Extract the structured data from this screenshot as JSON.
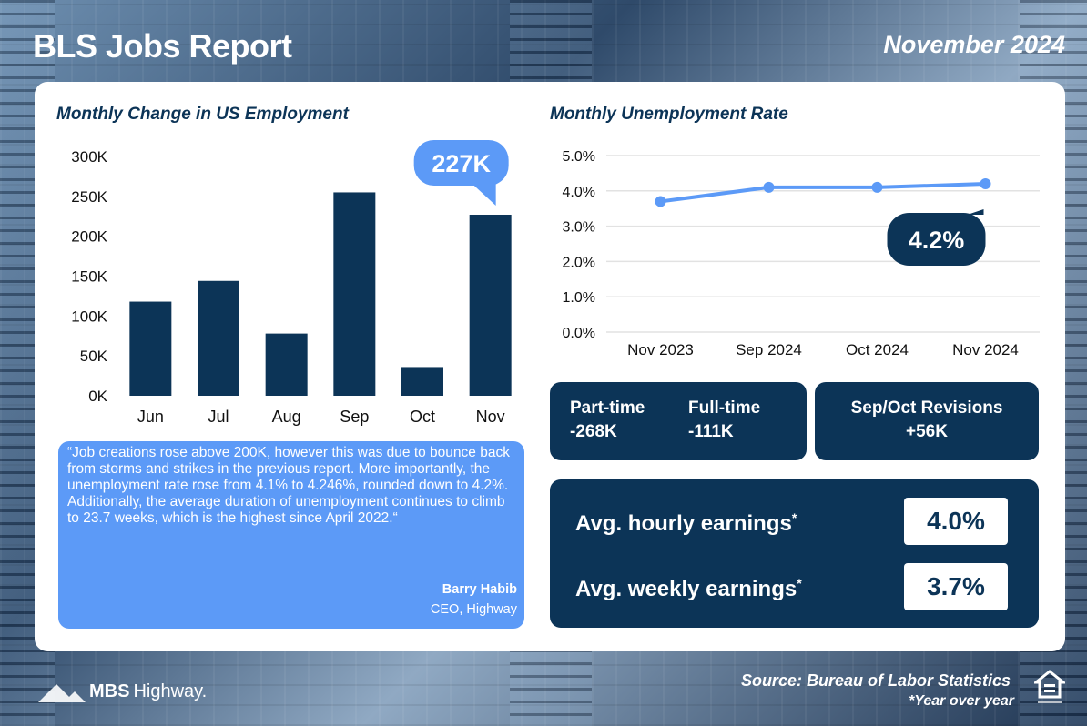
{
  "header": {
    "title": "BLS Jobs Report",
    "date": "November 2024"
  },
  "colors": {
    "navy": "#0c3457",
    "accent": "#5c9af7",
    "line": "#5c9af7"
  },
  "employment_chart_title": "Monthly Change in US Employment",
  "unemployment_chart_title": "Monthly Unemployment Rate",
  "chart_data": [
    {
      "type": "bar",
      "title": "Monthly Change in US Employment",
      "categories": [
        "Jun",
        "Jul",
        "Aug",
        "Sep",
        "Oct",
        "Nov"
      ],
      "values": [
        118000,
        144000,
        78000,
        255000,
        36000,
        227000
      ],
      "ylim": [
        0,
        300000
      ],
      "yticks": [
        0,
        50000,
        100000,
        150000,
        200000,
        250000,
        300000
      ],
      "ytick_labels": [
        "0K",
        "50K",
        "100K",
        "150K",
        "200K",
        "250K",
        "300K"
      ],
      "callout": "227K",
      "grid": false
    },
    {
      "type": "line",
      "title": "Monthly Unemployment Rate",
      "categories": [
        "Nov 2023",
        "Sep 2024",
        "Oct 2024",
        "Nov 2024"
      ],
      "values": [
        3.7,
        4.1,
        4.1,
        4.2
      ],
      "ylim": [
        0,
        5
      ],
      "yticks": [
        0,
        1,
        2,
        3,
        4,
        5
      ],
      "ytick_labels": [
        "0.0%",
        "1.0%",
        "2.0%",
        "3.0%",
        "4.0%",
        "5.0%"
      ],
      "callout": "4.2%",
      "grid": true
    }
  ],
  "quote": {
    "text": "“Job creations rose above 200K, however this was due to bounce back from storms and strikes in the previous report. More importantly, the unemployment rate rose from 4.1% to 4.246%, rounded down to 4.2%. Additionally, the average duration of unemployment continues to climb to 23.7 weeks, which is the highest since April 2022.“",
    "author": "Barry Habib",
    "role": "CEO, Highway"
  },
  "stats": {
    "part_time_label": "Part-time",
    "part_time_value": "-268K",
    "full_time_label": "Full-time",
    "full_time_value": "-111K",
    "revisions_label": "Sep/Oct Revisions",
    "revisions_value": "+56K"
  },
  "earnings": {
    "hourly_label": "Avg. hourly earnings",
    "hourly_value": "4.0%",
    "weekly_label": "Avg. weekly earnings",
    "weekly_value": "3.7%",
    "asterisk": "*"
  },
  "footer": {
    "brand_bold": "MBS",
    "brand_light": "Highway.",
    "source": "Source: Bureau of Labor Statistics",
    "note": "*Year over year"
  }
}
